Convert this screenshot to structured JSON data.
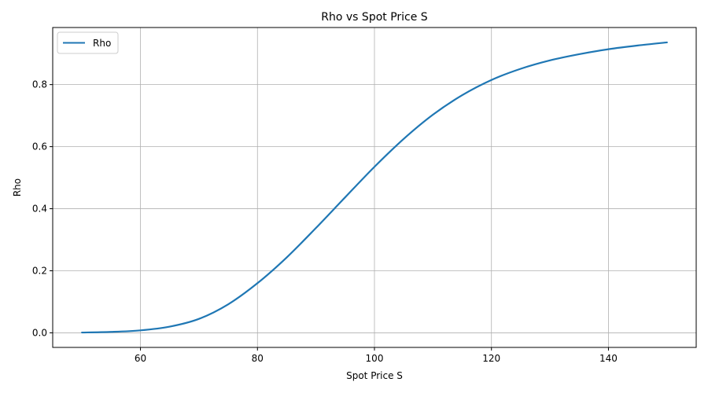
{
  "chart_data": {
    "type": "line",
    "title": "Rho vs Spot Price S",
    "xlabel": "Spot Price S",
    "ylabel": "Rho",
    "xlim": [
      45,
      155
    ],
    "ylim": [
      -0.047,
      0.984
    ],
    "xticks": [
      60,
      80,
      100,
      120,
      140
    ],
    "xtick_labels": [
      "60",
      "80",
      "100",
      "120",
      "140"
    ],
    "yticks": [
      0.0,
      0.2,
      0.4,
      0.6,
      0.8
    ],
    "ytick_labels": [
      "0.0",
      "0.2",
      "0.4",
      "0.6",
      "0.8"
    ],
    "grid": true,
    "legend": "top-left",
    "series": [
      {
        "name": "Rho",
        "color": "#1f77b4",
        "x": [
          50,
          55,
          60,
          65,
          70,
          75,
          80,
          85,
          90,
          95,
          100,
          105,
          110,
          115,
          120,
          125,
          130,
          135,
          140,
          145,
          150
        ],
        "y": [
          0.001,
          0.003,
          0.008,
          0.02,
          0.045,
          0.092,
          0.16,
          0.243,
          0.338,
          0.437,
          0.535,
          0.625,
          0.703,
          0.766,
          0.815,
          0.851,
          0.878,
          0.898,
          0.914,
          0.926,
          0.936
        ]
      }
    ]
  }
}
